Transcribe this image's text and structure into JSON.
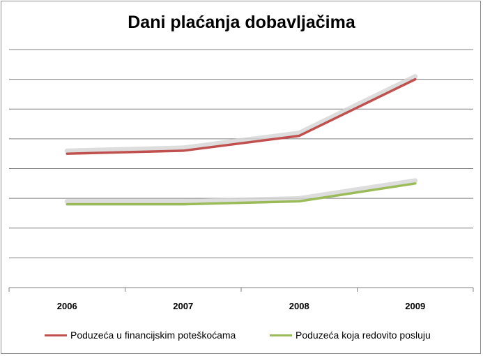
{
  "chart_data": {
    "type": "line",
    "title": "Dani plaćanja dobavljačima",
    "xlabel": "",
    "ylabel": "",
    "categories": [
      "2006",
      "2007",
      "2008",
      "2009"
    ],
    "ylim": [
      0,
      8
    ],
    "grid": true,
    "legend_position": "bottom",
    "series": [
      {
        "name": "Poduzeća u financijskim poteškoćama",
        "values": [
          4.5,
          4.6,
          5.1,
          7.0
        ],
        "color": "#c0504d"
      },
      {
        "name": "Poduzeća koja redovito posluju",
        "values": [
          2.8,
          2.8,
          2.9,
          3.5
        ],
        "color": "#9bbb59"
      }
    ]
  }
}
